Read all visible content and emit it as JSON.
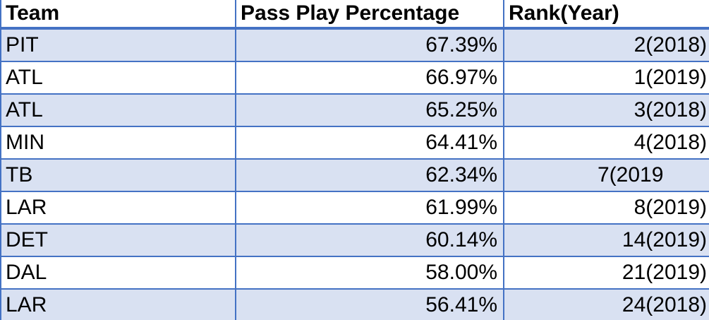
{
  "table": {
    "headers": [
      "Team",
      "Pass Play Percentage",
      "Rank(Year)"
    ],
    "rows": [
      {
        "team": "PIT",
        "pct": "67.39%",
        "rank": "2(2018)"
      },
      {
        "team": "ATL",
        "pct": "66.97%",
        "rank": "1(2019)"
      },
      {
        "team": "ATL",
        "pct": "65.25%",
        "rank": "3(2018)"
      },
      {
        "team": "MIN",
        "pct": "64.41%",
        "rank": "4(2018)"
      },
      {
        "team": "TB",
        "pct": "62.34%",
        "rank": "7(2019"
      },
      {
        "team": "LAR",
        "pct": "61.99%",
        "rank": "8(2019)"
      },
      {
        "team": "DET",
        "pct": "60.14%",
        "rank": "14(2019)"
      },
      {
        "team": "DAL",
        "pct": "58.00%",
        "rank": "21(2019)"
      },
      {
        "team": "LAR",
        "pct": "56.41%",
        "rank": "24(2018)"
      }
    ]
  },
  "colors": {
    "border": "#4472c4",
    "band": "#d9e1f2",
    "background": "#ffffff"
  }
}
